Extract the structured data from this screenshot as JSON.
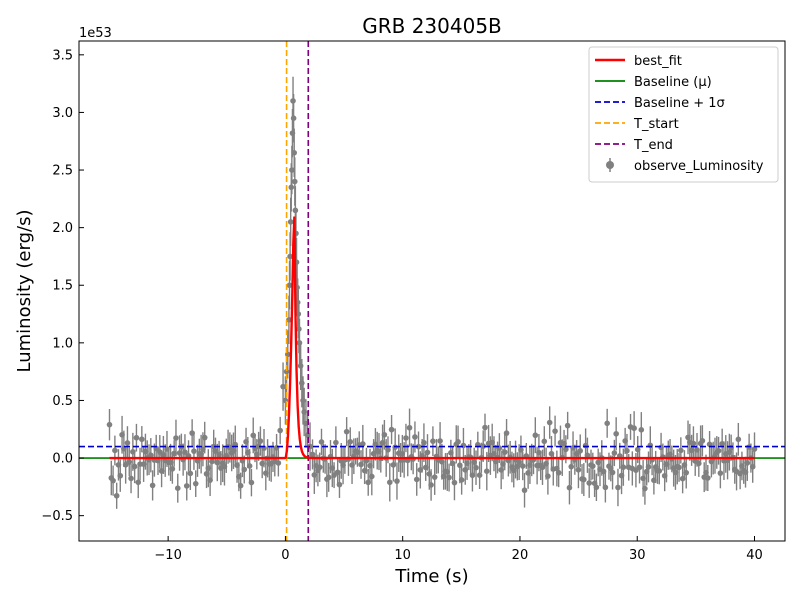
{
  "chart_data": {
    "type": "scatter",
    "title": "GRB 230405B",
    "xlabel": "Time (s)",
    "ylabel": "Luminosity (erg/s)",
    "y_scale_label": "1e53",
    "xlim": [
      -17.6,
      42.6
    ],
    "ylim": [
      -0.72,
      3.62
    ],
    "x_ticks": [
      -10,
      0,
      10,
      20,
      30,
      40
    ],
    "x_tick_labels": [
      "−10",
      "0",
      "10",
      "20",
      "30",
      "40"
    ],
    "y_ticks": [
      -0.5,
      0.0,
      0.5,
      1.0,
      1.5,
      2.0,
      2.5,
      3.0,
      3.5
    ],
    "y_tick_labels": [
      "−0.5",
      "0.0",
      "0.5",
      "1.0",
      "1.5",
      "2.0",
      "2.5",
      "3.0",
      "3.5"
    ],
    "grid": false,
    "legend_position": "top-right",
    "legend": [
      "best_fit",
      "Baseline (μ)",
      "Baseline + 1σ",
      "T_start",
      "T_end",
      "observe_Luminosity"
    ],
    "colors": {
      "observations": "#808080",
      "best_fit": "#ff0000",
      "baseline": "#008000",
      "baseline_sigma": "#0000cc",
      "t_start": "#ffa500",
      "t_end": "#800080"
    },
    "observations": {
      "x_range": [
        -15,
        40
      ],
      "n_points": 360,
      "baseline_scatter_sd": 0.12,
      "typical_error": 0.14,
      "peak_points": [
        {
          "x": -0.2,
          "y": 0.62
        },
        {
          "x": 0.0,
          "y": 0.5
        },
        {
          "x": 0.1,
          "y": 0.75
        },
        {
          "x": 0.2,
          "y": 0.9
        },
        {
          "x": 0.3,
          "y": 1.2
        },
        {
          "x": 0.35,
          "y": 1.5
        },
        {
          "x": 0.4,
          "y": 1.75
        },
        {
          "x": 0.45,
          "y": 2.05
        },
        {
          "x": 0.5,
          "y": 2.35
        },
        {
          "x": 0.55,
          "y": 2.5
        },
        {
          "x": 0.6,
          "y": 2.82
        },
        {
          "x": 0.65,
          "y": 3.1
        },
        {
          "x": 0.7,
          "y": 2.95
        },
        {
          "x": 0.75,
          "y": 2.65
        },
        {
          "x": 0.8,
          "y": 2.4
        },
        {
          "x": 0.85,
          "y": 2.15
        },
        {
          "x": 0.9,
          "y": 1.95
        },
        {
          "x": 0.95,
          "y": 1.7
        },
        {
          "x": 1.0,
          "y": 1.48
        },
        {
          "x": 1.05,
          "y": 1.35
        },
        {
          "x": 1.1,
          "y": 1.25
        },
        {
          "x": 1.15,
          "y": 1.12
        },
        {
          "x": 1.2,
          "y": 1.0
        },
        {
          "x": 1.3,
          "y": 0.8
        },
        {
          "x": 1.4,
          "y": 0.65
        },
        {
          "x": 1.5,
          "y": 0.5
        },
        {
          "x": 1.6,
          "y": 0.4
        },
        {
          "x": 1.75,
          "y": 0.3
        },
        {
          "x": 1.9,
          "y": 0.2
        },
        {
          "x": 2.1,
          "y": 0.1
        }
      ]
    },
    "best_fit": {
      "peak_time": 0.75,
      "peak_value": 2.3,
      "rise_start": 0.0,
      "decay_tau": 0.18
    },
    "baseline_mu": 0.0,
    "baseline_plus_1sigma": 0.1,
    "t_start": 0.1,
    "t_end": 1.95
  }
}
